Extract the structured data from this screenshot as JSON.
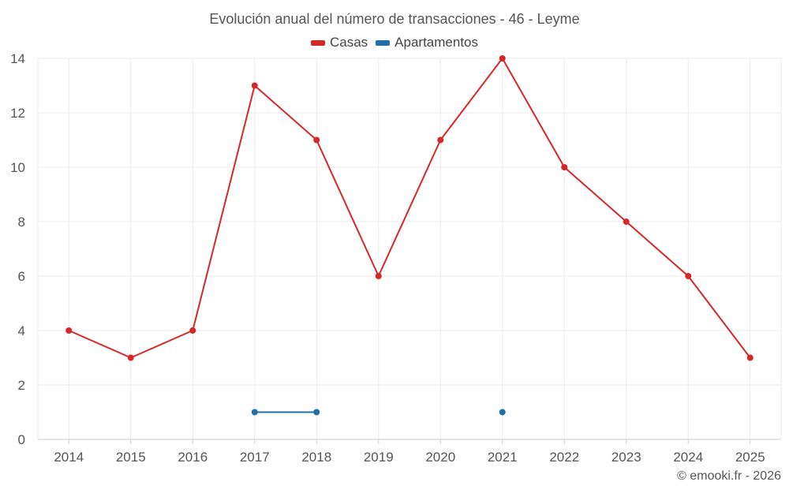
{
  "chart_data": {
    "type": "line",
    "title": "Evolución anual del número de transacciones - 46 - Leyme",
    "categories": [
      "2014",
      "2015",
      "2016",
      "2017",
      "2018",
      "2019",
      "2020",
      "2021",
      "2022",
      "2023",
      "2024",
      "2025"
    ],
    "ylim": [
      0,
      14
    ],
    "yticks": [
      0,
      2,
      4,
      6,
      8,
      10,
      12,
      14
    ],
    "grid": true,
    "legend_position": "top-center",
    "series": [
      {
        "name": "Casas",
        "color": "#d62728",
        "values": [
          4,
          3,
          4,
          13,
          11,
          6,
          11,
          14,
          10,
          8,
          6,
          3
        ]
      },
      {
        "name": "Apartamentos",
        "color": "#1f6fa8",
        "values": [
          null,
          null,
          null,
          1,
          1,
          null,
          null,
          1,
          null,
          null,
          null,
          null
        ]
      }
    ]
  },
  "credit": "© emooki.fr - 2026"
}
